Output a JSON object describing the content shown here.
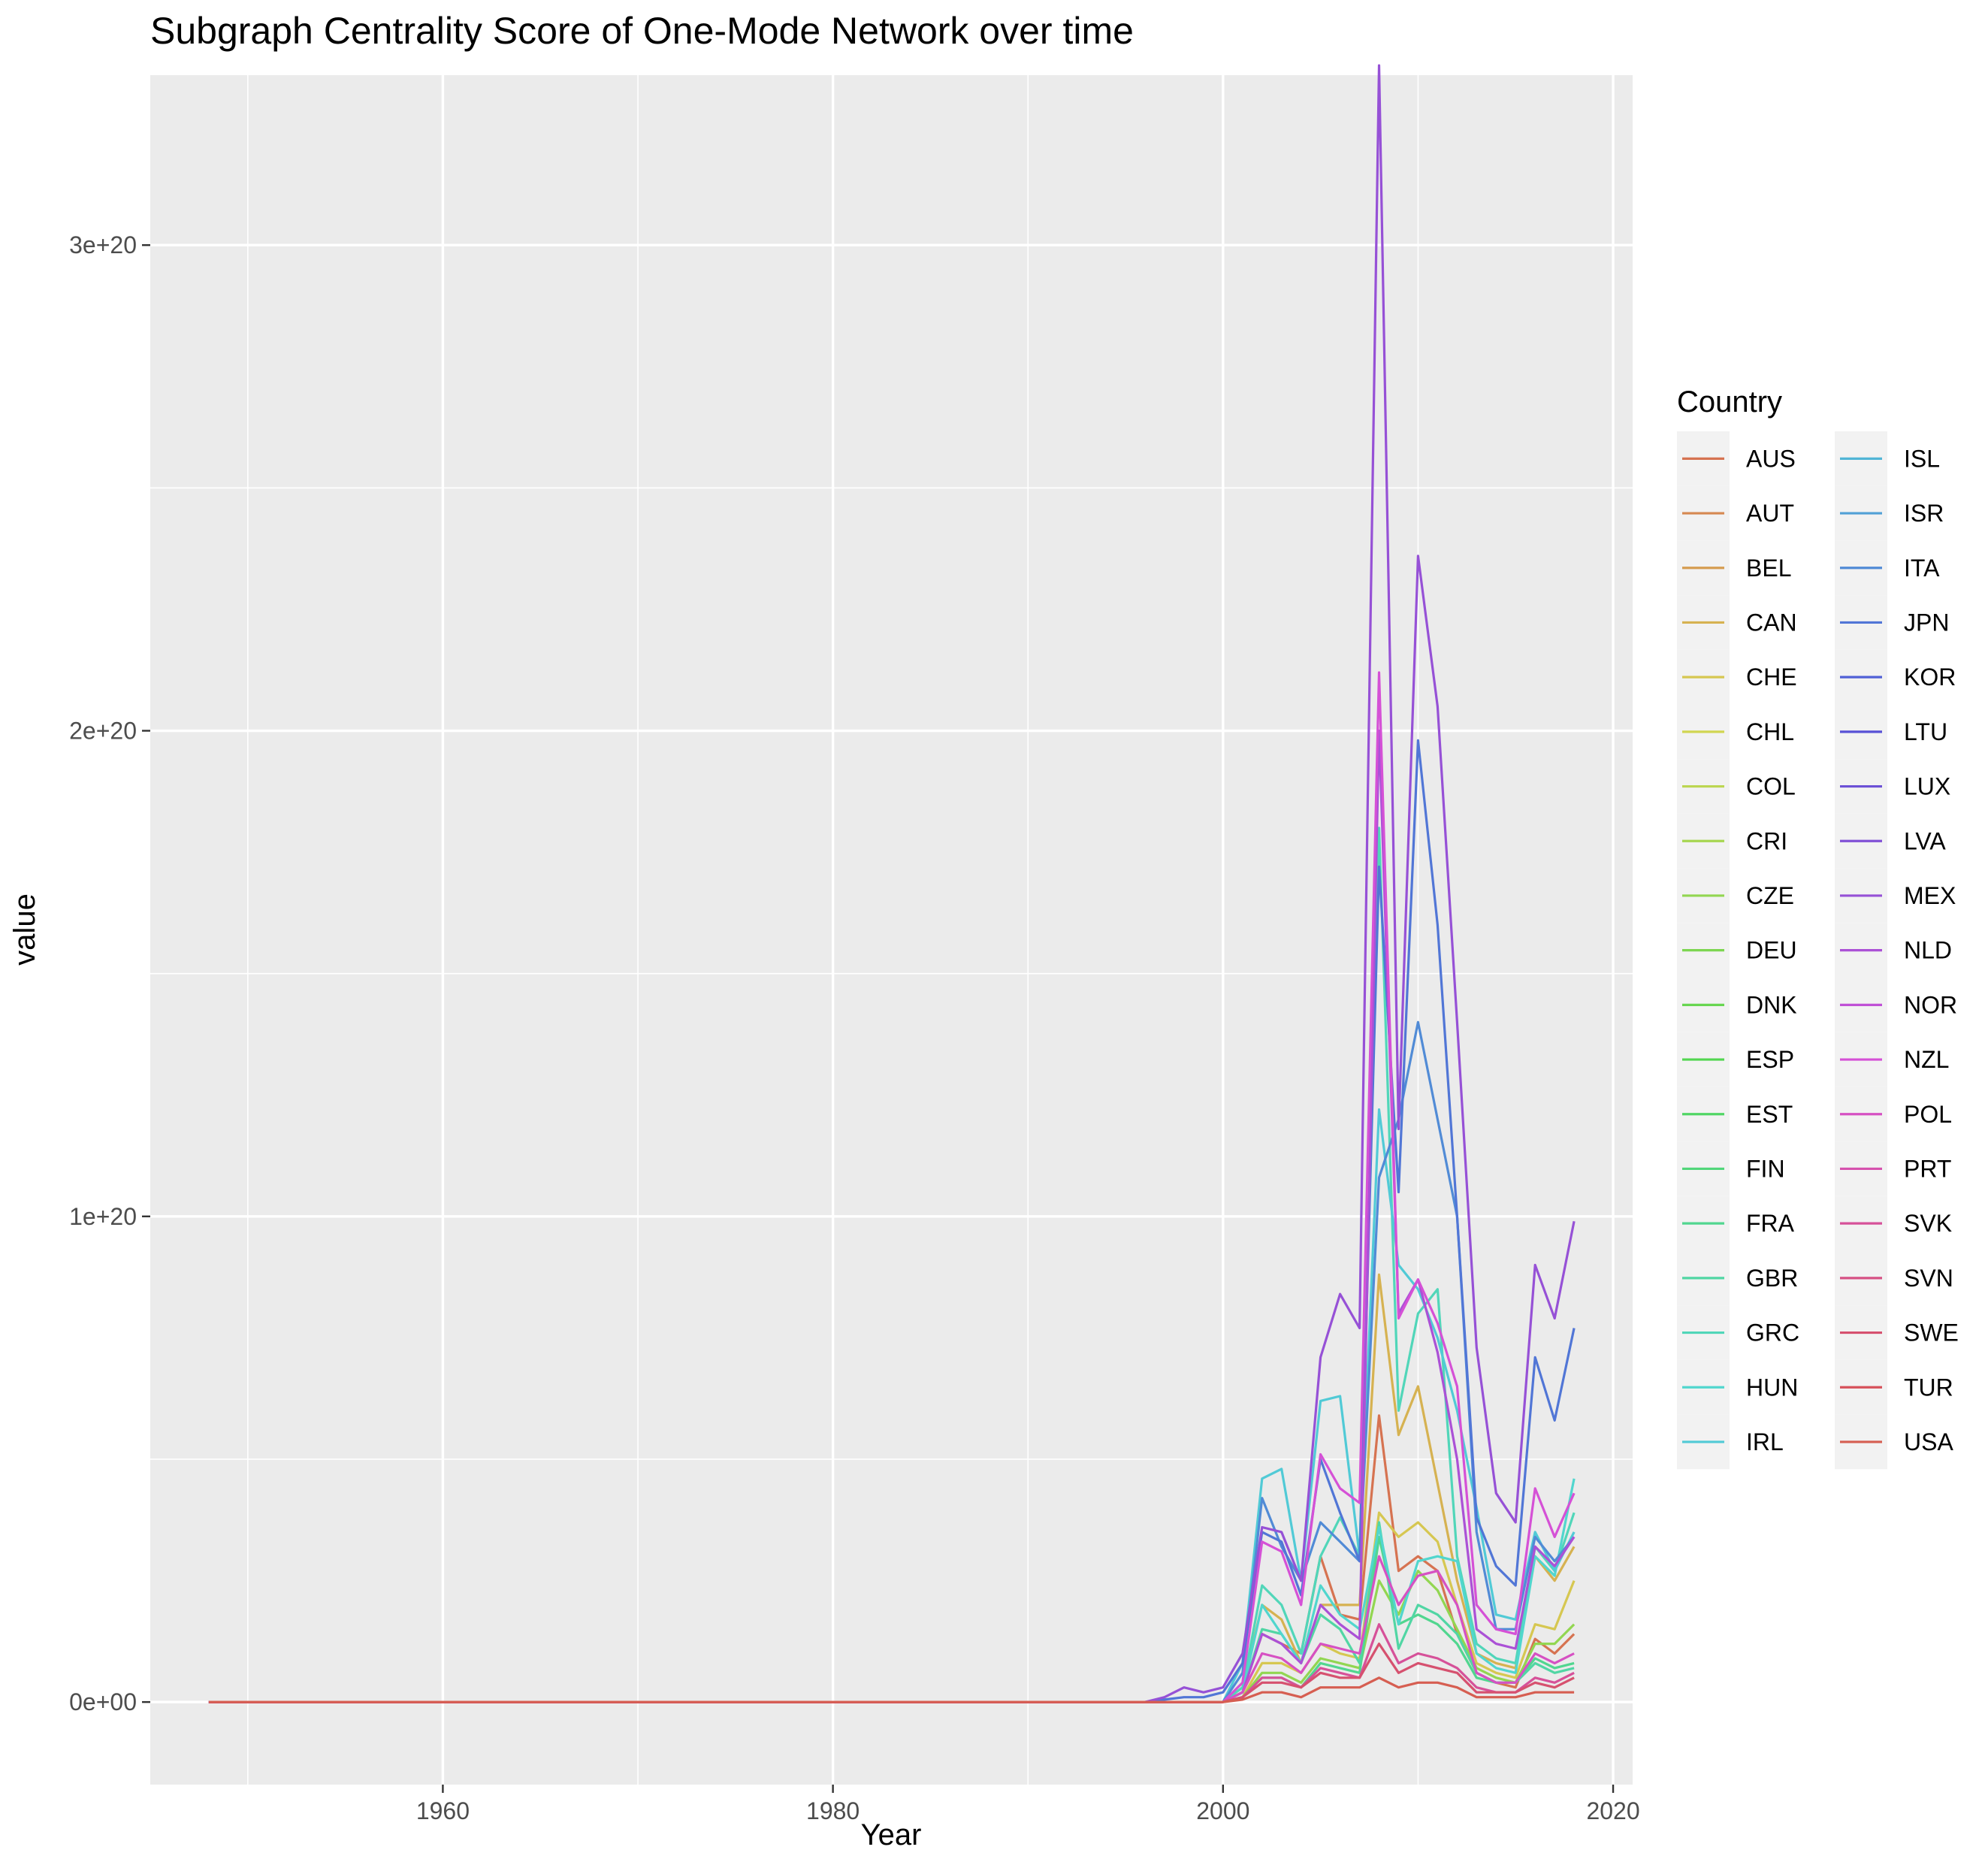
{
  "chart_data": {
    "type": "line",
    "title": "Subgraph Centrality Score of One-Mode Network over time",
    "xlabel": "Year",
    "ylabel": "value",
    "xlim": [
      1945,
      2021
    ],
    "ylim": [
      -1.7e+19,
      3.35e+20
    ],
    "x_ticks": [
      1960,
      1980,
      2000,
      2020
    ],
    "x_tick_labels": [
      "1960",
      "1980",
      "2000",
      "2020"
    ],
    "x_minor_ticks": [
      1950,
      1970,
      1990,
      2010
    ],
    "y_ticks": [
      0,
      1e+20,
      2e+20,
      3e+20
    ],
    "y_tick_labels": [
      "0e+00",
      "1e+20",
      "2e+20",
      "3e+20"
    ],
    "y_minor_ticks": [
      5e+19,
      1.5e+20,
      2.5e+20
    ],
    "grid": true,
    "legend": {
      "title": "Country",
      "position": "right",
      "columns": 2,
      "entries": [
        "AUS",
        "AUT",
        "BEL",
        "CAN",
        "CHE",
        "CHL",
        "COL",
        "CRI",
        "CZE",
        "DEU",
        "DNK",
        "ESP",
        "EST",
        "FIN",
        "FRA",
        "GBR",
        "GRC",
        "HUN",
        "IRL",
        "ISL",
        "ISR",
        "ITA",
        "JPN",
        "KOR",
        "LTU",
        "LUX",
        "LVA",
        "MEX",
        "NLD",
        "NOR",
        "NZL",
        "POL",
        "PRT",
        "SVK",
        "SVN",
        "SWE",
        "TUR",
        "USA"
      ]
    },
    "colors": [
      "#F8766D",
      "#F07E4D",
      "#E58700",
      "#D89000",
      "#C99800",
      "#B79F00",
      "#A3A500",
      "#8CAB00",
      "#70B000",
      "#49B500",
      "#00B81F",
      "#00BB4E",
      "#00BE67",
      "#00C07B",
      "#00C18E",
      "#00C1A0",
      "#00C0B1",
      "#00BEC1",
      "#00BAD0",
      "#00B4DF",
      "#00ADEB",
      "#00A6F5",
      "#009CFC",
      "#4A91FF",
      "#8B87FF",
      "#AF7CFF",
      "#CB73F5",
      "#E06AE8",
      "#EF67DC",
      "#F866CE",
      "#FC67BF",
      "#FF6AAD",
      "#FF6F9B",
      "#FB7385",
      "#F8766D"
    ],
    "x": [
      1948,
      1995,
      1996,
      1997,
      1998,
      1999,
      2000,
      2001,
      2002,
      2003,
      2004,
      2005,
      2006,
      2007,
      2008,
      2009,
      2010,
      2011,
      2012,
      2013,
      2014,
      2015,
      2016,
      2017,
      2018
    ],
    "series": [
      {
        "name": "AUS",
        "values": [
          0,
          0,
          0,
          0,
          0,
          0,
          0,
          2e+18,
          1.4e+19,
          1.2e+19,
          1e+19,
          3e+19,
          1.8e+19,
          1.7e+19,
          5.9e+19,
          2.7e+19,
          3e+19,
          2.7e+19,
          1.4e+19,
          6e+18,
          4e+18,
          3e+18,
          1.3e+19,
          1e+19,
          1.4e+19
        ]
      },
      {
        "name": "CAN",
        "values": [
          0,
          0,
          0,
          0,
          0,
          0,
          0,
          3e+18,
          2e+19,
          1.7e+19,
          8e+18,
          2e+19,
          2e+19,
          2e+19,
          8.8e+19,
          5.5e+19,
          6.5e+19,
          4.5e+19,
          2.5e+19,
          1e+19,
          8e+18,
          7e+18,
          3e+19,
          2.5e+19,
          3.2e+19
        ]
      },
      {
        "name": "CHE",
        "values": [
          0,
          0,
          0,
          0,
          0,
          0,
          0,
          1e+18,
          8e+18,
          8e+18,
          6e+18,
          1.2e+19,
          1e+19,
          9e+18,
          3.9e+19,
          3.4e+19,
          3.7e+19,
          3.3e+19,
          2e+19,
          8e+18,
          6e+18,
          5e+18,
          1.6e+19,
          1.5e+19,
          2.5e+19
        ]
      },
      {
        "name": "CZE",
        "values": [
          0,
          0,
          0,
          0,
          0,
          0,
          0,
          1e+18,
          6e+18,
          6e+18,
          4e+18,
          9e+18,
          8e+18,
          7e+18,
          2.5e+19,
          1.8e+19,
          2.7e+19,
          2.3e+19,
          1.5e+19,
          7e+18,
          5e+18,
          4e+18,
          1.2e+19,
          1.2e+19,
          1.6e+19
        ]
      },
      {
        "name": "FRA",
        "values": [
          0,
          0,
          0,
          0,
          0,
          0,
          0,
          1e+18,
          5e+18,
          5e+18,
          3e+18,
          8e+18,
          7e+18,
          6e+18,
          3.4e+19,
          1.6e+19,
          1.8e+19,
          1.6e+19,
          1.2e+19,
          5e+18,
          4e+18,
          4e+18,
          9e+18,
          7e+18,
          8e+18
        ]
      },
      {
        "name": "GBR",
        "values": [
          0,
          0,
          0,
          0,
          0,
          0,
          0,
          2e+18,
          1.5e+19,
          1.4e+19,
          8e+18,
          1.8e+19,
          1.5e+19,
          8e+18,
          3.7e+19,
          1.1e+19,
          2e+19,
          1.8e+19,
          1.4e+19,
          6e+18,
          4e+18,
          4e+18,
          8e+18,
          6e+18,
          7e+18
        ]
      },
      {
        "name": "GRC",
        "values": [
          0,
          0,
          0,
          0,
          0,
          0,
          0,
          3e+18,
          2.4e+19,
          2e+19,
          1e+19,
          3e+19,
          3.8e+19,
          3e+19,
          1.8e+20,
          6e+19,
          8e+19,
          8.5e+19,
          3e+19,
          1.2e+19,
          9e+18,
          8e+18,
          3.2e+19,
          2.7e+19,
          3.9e+19
        ]
      },
      {
        "name": "HUN",
        "values": [
          0,
          0,
          0,
          0,
          0,
          0,
          0,
          2e+18,
          2e+19,
          1.4e+19,
          8e+18,
          2.4e+19,
          1.8e+19,
          1.5e+19,
          3.6e+19,
          1.6e+19,
          2.9e+19,
          3e+19,
          2.9e+19,
          1e+19,
          7e+18,
          6e+18,
          3e+19,
          2.6e+19,
          4.6e+19
        ]
      },
      {
        "name": "IRL",
        "values": [
          0,
          0,
          0,
          0,
          0,
          0,
          0,
          8e+18,
          4.6e+19,
          4.8e+19,
          2.5e+19,
          6.2e+19,
          6.3e+19,
          3e+19,
          1.22e+20,
          9e+19,
          8.5e+19,
          7.5e+19,
          6e+19,
          4e+19,
          1.8e+19,
          1.7e+19,
          3.5e+19,
          2.7e+19,
          3.5e+19
        ]
      },
      {
        "name": "ITA",
        "values": [
          0,
          0,
          0,
          0,
          0,
          0,
          0,
          6e+18,
          4.2e+19,
          3.2e+19,
          2.5e+19,
          3.7e+19,
          3.3e+19,
          2.9e+19,
          1.08e+20,
          1.2e+20,
          1.4e+20,
          1.2e+20,
          1e+20,
          3.5e+19,
          1.5e+19,
          1.5e+19,
          3.4e+19,
          2.9e+19,
          3.4e+19
        ]
      },
      {
        "name": "JPN",
        "values": [
          0,
          0,
          0,
          5e+17,
          1e+18,
          1e+18,
          2e+18,
          8e+18,
          3.5e+19,
          3.3e+19,
          2.2e+19,
          5e+19,
          3.9e+19,
          2.9e+19,
          1.72e+20,
          1.05e+20,
          1.98e+20,
          1.6e+20,
          1e+20,
          3.8e+19,
          2.8e+19,
          2.4e+19,
          7.1e+19,
          5.8e+19,
          7.7e+19
        ]
      },
      {
        "name": "MEX",
        "values": [
          0,
          0,
          0,
          1e+18,
          3e+18,
          2e+18,
          3e+18,
          1e+19,
          3.6e+19,
          3.5e+19,
          2.5e+19,
          7.1e+19,
          8.4e+19,
          7.7e+19,
          3.37e+20,
          1.18e+20,
          2.36e+20,
          2.05e+20,
          1.4e+20,
          7.3e+19,
          4.3e+19,
          3.7e+19,
          9e+19,
          7.9e+19,
          9.9e+19
        ]
      },
      {
        "name": "NLD",
        "values": [
          0,
          0,
          0,
          0,
          0,
          0,
          0,
          2e+18,
          1.4e+19,
          1.2e+19,
          8e+18,
          2e+19,
          1.6e+19,
          1.3e+19,
          2e+20,
          8e+19,
          8.7e+19,
          7.2e+19,
          5e+19,
          1.5e+19,
          1.2e+19,
          1.1e+19,
          3.2e+19,
          2.8e+19,
          3.4e+19
        ]
      },
      {
        "name": "NZL",
        "values": [
          0,
          0,
          0,
          0,
          0,
          0,
          0,
          4e+18,
          3.3e+19,
          3.1e+19,
          2e+19,
          5.1e+19,
          4.4e+19,
          4.1e+19,
          2.12e+20,
          7.9e+19,
          8.7e+19,
          7.8e+19,
          6.5e+19,
          2e+19,
          1.5e+19,
          1.4e+19,
          4.4e+19,
          3.4e+19,
          4.3e+19
        ]
      },
      {
        "name": "POL",
        "values": [
          0,
          0,
          0,
          0,
          0,
          0,
          0,
          2e+18,
          1e+19,
          9e+18,
          6e+18,
          1.2e+19,
          1.1e+19,
          1e+19,
          3e+19,
          2e+19,
          2.6e+19,
          2.7e+19,
          2e+19,
          6e+18,
          4e+18,
          4e+18,
          1e+19,
          8e+18,
          1e+19
        ]
      },
      {
        "name": "SVK",
        "values": [
          0,
          0,
          0,
          0,
          0,
          0,
          0,
          1e+18,
          5e+18,
          5e+18,
          3e+18,
          7e+18,
          6e+18,
          5e+18,
          1.6e+19,
          8e+18,
          1e+19,
          9e+18,
          7e+18,
          3e+18,
          2e+18,
          2e+18,
          5e+18,
          4e+18,
          6e+18
        ]
      },
      {
        "name": "SWE",
        "values": [
          0,
          0,
          0,
          0,
          0,
          0,
          0,
          1e+18,
          4e+18,
          4e+18,
          3e+18,
          6e+18,
          5e+18,
          5e+18,
          1.2e+19,
          6e+18,
          8e+18,
          7e+18,
          6e+18,
          2e+18,
          2e+18,
          2e+18,
          4e+18,
          3e+18,
          5e+18
        ]
      },
      {
        "name": "USA",
        "values": [
          0,
          0,
          0,
          0,
          0,
          0,
          0,
          5e+17,
          2e+18,
          2e+18,
          1e+18,
          3e+18,
          3e+18,
          3e+18,
          5e+18,
          3e+18,
          4e+18,
          4e+18,
          3e+18,
          1e+18,
          1e+18,
          1e+18,
          2e+18,
          2e+18,
          2e+18
        ]
      }
    ]
  }
}
